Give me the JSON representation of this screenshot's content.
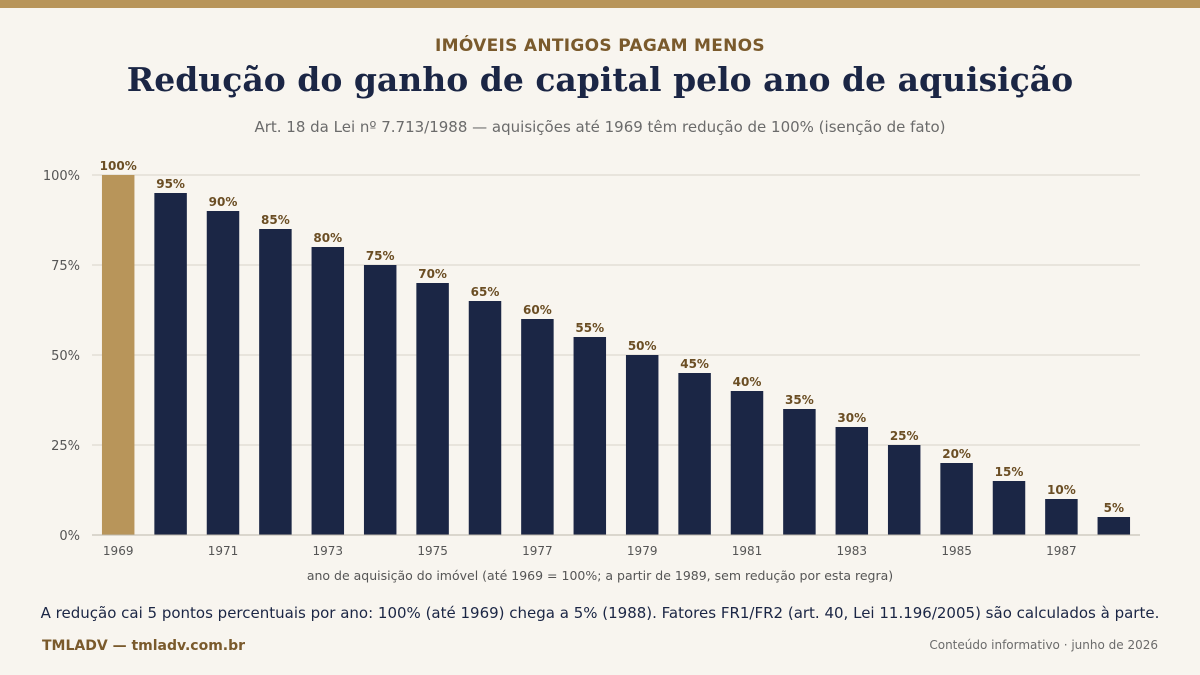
{
  "header": {
    "kicker": "IMÓVEIS ANTIGOS PAGAM MENOS",
    "title": "Redução do ganho de capital pelo ano de aquisição",
    "subtitle": "Art. 18 da Lei nº 7.713/1988 — aquisições até 1969 têm redução de 100% (isenção de fato)"
  },
  "chart_data": {
    "type": "bar",
    "categories": [
      "1969",
      "1970",
      "1971",
      "1972",
      "1973",
      "1974",
      "1975",
      "1976",
      "1977",
      "1978",
      "1979",
      "1980",
      "1981",
      "1982",
      "1983",
      "1984",
      "1985",
      "1986",
      "1987",
      "1988"
    ],
    "tick_labels": [
      "1969",
      "",
      "1971",
      "",
      "1973",
      "",
      "1975",
      "",
      "1977",
      "",
      "1979",
      "",
      "1981",
      "",
      "1983",
      "",
      "1985",
      "",
      "1987",
      ""
    ],
    "values": [
      100,
      95,
      90,
      85,
      80,
      75,
      70,
      65,
      60,
      55,
      50,
      45,
      40,
      35,
      30,
      25,
      20,
      15,
      10,
      5
    ],
    "data_labels": [
      "100%",
      "95%",
      "90%",
      "85%",
      "80%",
      "75%",
      "70%",
      "65%",
      "60%",
      "55%",
      "50%",
      "45%",
      "40%",
      "35%",
      "30%",
      "25%",
      "20%",
      "15%",
      "10%",
      "5%"
    ],
    "y_ticks": [
      0,
      25,
      50,
      75,
      100
    ],
    "y_tick_labels": [
      "0%",
      "25%",
      "50%",
      "75%",
      "100%"
    ],
    "ylim": [
      0,
      100
    ],
    "xlabel": "ano de aquisição do imóvel  (até 1969 = 100%; a partir de 1989, sem redução por esta regra)",
    "ylabel": "",
    "grid": true,
    "highlight_index": 0,
    "colors": {
      "bar": "#1b2645",
      "highlight": "#b8955a",
      "label": "#6b4e24",
      "grid": "#d9d4ca",
      "tick": "#555555"
    }
  },
  "footer": {
    "footnote": "A redução cai 5 pontos percentuais por ano: 100% (até 1969) chega a 5% (1988). Fatores FR1/FR2 (art. 40, Lei 11.196/2005) são calculados à parte.",
    "brand": "TMLADV — tmladv.com.br",
    "note": "Conteúdo informativo · junho de 2026"
  }
}
